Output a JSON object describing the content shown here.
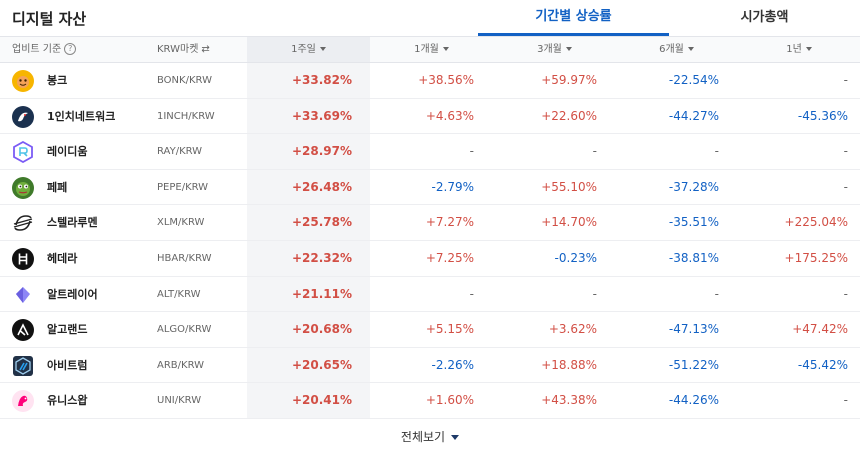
{
  "title": "디지털 자산",
  "tabs": [
    {
      "label": "기간별 상승률",
      "active": true
    },
    {
      "label": "시가총액",
      "active": false
    }
  ],
  "columns": {
    "basis": "업비트 기준",
    "market": "KRW마켓",
    "week1": "1주일",
    "month1": "1개월",
    "month3": "3개월",
    "month6": "6개월",
    "year1": "1년"
  },
  "rows": [
    {
      "name": "봉크",
      "pair": "BONK/KRW",
      "icon": "bonk-icon",
      "w1": "+33.82%",
      "m1": "+38.56%",
      "m3": "+59.97%",
      "m6": "-22.54%",
      "y1": "-"
    },
    {
      "name": "1인치네트워크",
      "pair": "1INCH/KRW",
      "icon": "1inch-icon",
      "w1": "+33.69%",
      "m1": "+4.63%",
      "m3": "+22.60%",
      "m6": "-44.27%",
      "y1": "-45.36%"
    },
    {
      "name": "레이디움",
      "pair": "RAY/KRW",
      "icon": "raydium-icon",
      "w1": "+28.97%",
      "m1": "-",
      "m3": "-",
      "m6": "-",
      "y1": "-"
    },
    {
      "name": "페페",
      "pair": "PEPE/KRW",
      "icon": "pepe-icon",
      "w1": "+26.48%",
      "m1": "-2.79%",
      "m3": "+55.10%",
      "m6": "-37.28%",
      "y1": "-"
    },
    {
      "name": "스텔라루멘",
      "pair": "XLM/KRW",
      "icon": "stellar-icon",
      "w1": "+25.78%",
      "m1": "+7.27%",
      "m3": "+14.70%",
      "m6": "-35.51%",
      "y1": "+225.04%"
    },
    {
      "name": "헤데라",
      "pair": "HBAR/KRW",
      "icon": "hedera-icon",
      "w1": "+22.32%",
      "m1": "+7.25%",
      "m3": "-0.23%",
      "m6": "-38.81%",
      "y1": "+175.25%"
    },
    {
      "name": "알트레이어",
      "pair": "ALT/KRW",
      "icon": "altlayer-icon",
      "w1": "+21.11%",
      "m1": "-",
      "m3": "-",
      "m6": "-",
      "y1": "-"
    },
    {
      "name": "알고랜드",
      "pair": "ALGO/KRW",
      "icon": "algorand-icon",
      "w1": "+20.68%",
      "m1": "+5.15%",
      "m3": "+3.62%",
      "m6": "-47.13%",
      "y1": "+47.42%"
    },
    {
      "name": "아비트럼",
      "pair": "ARB/KRW",
      "icon": "arbitrum-icon",
      "w1": "+20.65%",
      "m1": "-2.26%",
      "m3": "+18.88%",
      "m6": "-51.22%",
      "y1": "-45.42%"
    },
    {
      "name": "유니스왑",
      "pair": "UNI/KRW",
      "icon": "uniswap-icon",
      "w1": "+20.41%",
      "m1": "+1.60%",
      "m3": "+43.38%",
      "m6": "-44.26%",
      "y1": "-"
    }
  ],
  "footer": {
    "label": "전체보기"
  },
  "colors": {
    "accent": "#1261c4",
    "up": "#d24f45",
    "down": "#1261c4"
  }
}
